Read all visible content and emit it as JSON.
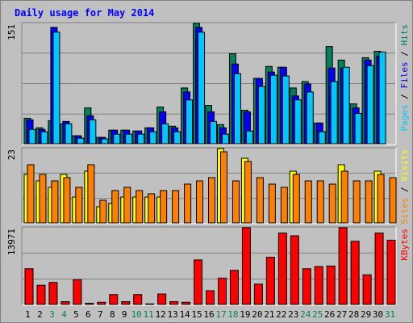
{
  "title": "Daily usage for May 2014",
  "colors": {
    "hits": "#00805c",
    "files": "#0000ff",
    "pages": "#00c8ff",
    "visits": "#ffff00",
    "sites": "#ff8000",
    "kbytes": "#ff0000",
    "weekday": "#000000",
    "weekend": "#00805c",
    "background": "#c0c0c0"
  },
  "chart_data": [
    {
      "type": "bar",
      "name": "hits-files-pages",
      "max_label": "151",
      "ylim": [
        0,
        151
      ],
      "legend": [
        {
          "text": "Pages",
          "color_key": "pages"
        },
        {
          "text": " / ",
          "color_key": "weekday"
        },
        {
          "text": "Files",
          "color_key": "files"
        },
        {
          "text": " / ",
          "color_key": "weekday"
        },
        {
          "text": "Hits",
          "color_key": "hits"
        }
      ],
      "categories": [
        "1",
        "2",
        "3",
        "4",
        "5",
        "6",
        "7",
        "8",
        "9",
        "10",
        "11",
        "12",
        "13",
        "14",
        "15",
        "16",
        "17",
        "18",
        "19",
        "20",
        "21",
        "22",
        "23",
        "24",
        "25",
        "26",
        "27",
        "28",
        "29",
        "30",
        "31"
      ],
      "weekend_days": [
        "3",
        "4",
        "10",
        "11",
        "17",
        "18",
        "24",
        "25",
        "31"
      ],
      "series": [
        {
          "name": "Hits",
          "color_key": "hits",
          "values": [
            32,
            20,
            29,
            25,
            10,
            45,
            8,
            17,
            17,
            16,
            20,
            46,
            22,
            70,
            151,
            48,
            24,
            113,
            42,
            82,
            97,
            96,
            70,
            78,
            26,
            122,
            105,
            50,
            108,
            116,
            0
          ]
        },
        {
          "name": "Files",
          "color_key": "files",
          "values": [
            30,
            18,
            146,
            28,
            10,
            35,
            8,
            17,
            17,
            16,
            20,
            40,
            20,
            65,
            146,
            40,
            20,
            100,
            40,
            82,
            90,
            96,
            60,
            75,
            26,
            95,
            95,
            45,
            105,
            110,
            0
          ]
        },
        {
          "name": "Pages",
          "color_key": "pages",
          "values": [
            18,
            15,
            140,
            25,
            7,
            30,
            6,
            12,
            12,
            12,
            15,
            25,
            15,
            55,
            140,
            28,
            12,
            88,
            16,
            72,
            86,
            85,
            55,
            65,
            15,
            78,
            96,
            38,
            98,
            115,
            0
          ]
        }
      ]
    },
    {
      "type": "bar",
      "name": "sites-visits",
      "max_label": "23",
      "ylim": [
        0,
        23
      ],
      "legend": [
        {
          "text": "Sites",
          "color_key": "sites"
        },
        {
          "text": " / ",
          "color_key": "weekday"
        },
        {
          "text": "Visits",
          "color_key": "visits"
        }
      ],
      "categories": [
        "1",
        "2",
        "3",
        "4",
        "5",
        "6",
        "7",
        "8",
        "9",
        "10",
        "11",
        "12",
        "13",
        "14",
        "15",
        "16",
        "17",
        "18",
        "19",
        "20",
        "21",
        "22",
        "23",
        "24",
        "25",
        "26",
        "27",
        "28",
        "29",
        "30",
        "31"
      ],
      "series": [
        {
          "name": "Visits",
          "color_key": "visits",
          "values": [
            15,
            13,
            11,
            15,
            8,
            16,
            5,
            6,
            8,
            8,
            8,
            8,
            0,
            0,
            0,
            0,
            23,
            0,
            20,
            0,
            0,
            0,
            16,
            0,
            0,
            0,
            18,
            0,
            0,
            16,
            0
          ]
        },
        {
          "name": "Sites",
          "color_key": "sites",
          "values": [
            18,
            15,
            13,
            14,
            11,
            18,
            7,
            10,
            11,
            10,
            9,
            10,
            10,
            12,
            13,
            14,
            22,
            13,
            19,
            14,
            12,
            11,
            15,
            13,
            13,
            12,
            16,
            13,
            13,
            15,
            14
          ]
        }
      ]
    },
    {
      "type": "bar",
      "name": "kbytes",
      "max_label": "13971",
      "ylim": [
        0,
        13971
      ],
      "legend": [
        {
          "text": "KBytes",
          "color_key": "kbytes"
        }
      ],
      "categories": [
        "1",
        "2",
        "3",
        "4",
        "5",
        "6",
        "7",
        "8",
        "9",
        "10",
        "11",
        "12",
        "13",
        "14",
        "15",
        "16",
        "17",
        "18",
        "19",
        "20",
        "21",
        "22",
        "23",
        "24",
        "25",
        "26",
        "27",
        "28",
        "29",
        "30",
        "31"
      ],
      "series": [
        {
          "name": "KBytes",
          "color_key": "kbytes",
          "values": [
            6500,
            3500,
            4000,
            500,
            4500,
            200,
            400,
            1800,
            500,
            1800,
            100,
            1900,
            500,
            400,
            8100,
            2500,
            4800,
            6200,
            13971,
            3700,
            8600,
            13000,
            12500,
            6500,
            6900,
            7000,
            13971,
            11500,
            5400,
            13000,
            11700
          ]
        }
      ]
    }
  ]
}
